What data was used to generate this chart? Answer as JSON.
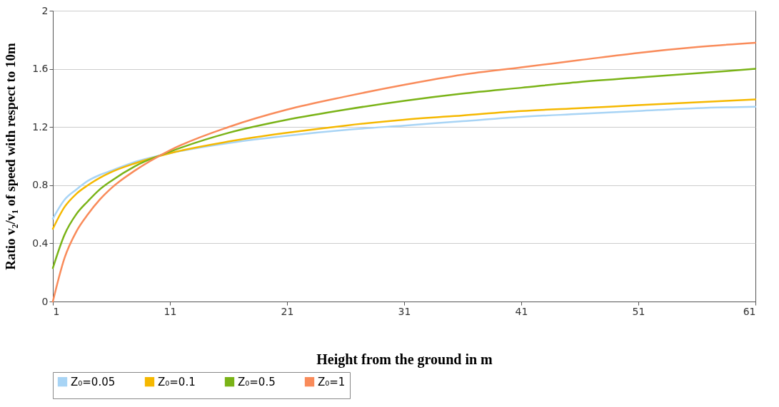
{
  "chart_data": {
    "type": "line",
    "xlabel": "Height from the ground in m",
    "ylabel": "Ratio v₂/v₁ of speed with respect to 10m",
    "x": [
      1,
      2,
      3,
      4,
      5,
      6,
      8,
      11,
      16,
      21,
      26,
      31,
      36,
      41,
      46,
      51,
      56,
      61
    ],
    "series": [
      {
        "name": "Z₀=0.05",
        "color": "#a8d4f5",
        "values": [
          0.57,
          0.7,
          0.77,
          0.83,
          0.87,
          0.9,
          0.96,
          1.02,
          1.09,
          1.14,
          1.18,
          1.21,
          1.24,
          1.27,
          1.29,
          1.31,
          1.33,
          1.34
        ]
      },
      {
        "name": "Z₀=0.1",
        "color": "#f5b800",
        "values": [
          0.5,
          0.65,
          0.74,
          0.8,
          0.85,
          0.89,
          0.95,
          1.02,
          1.1,
          1.16,
          1.21,
          1.25,
          1.28,
          1.31,
          1.33,
          1.35,
          1.37,
          1.39
        ]
      },
      {
        "name": "Z₀=0.5",
        "color": "#7ab317",
        "values": [
          0.23,
          0.46,
          0.6,
          0.69,
          0.77,
          0.83,
          0.93,
          1.03,
          1.16,
          1.25,
          1.32,
          1.38,
          1.43,
          1.47,
          1.51,
          1.54,
          1.57,
          1.6
        ]
      },
      {
        "name": "Z₀=1",
        "color": "#f98b5a",
        "values": [
          0,
          0.3,
          0.48,
          0.6,
          0.7,
          0.78,
          0.9,
          1.04,
          1.2,
          1.32,
          1.41,
          1.49,
          1.56,
          1.61,
          1.66,
          1.71,
          1.75,
          1.78
        ]
      }
    ],
    "xlim": [
      1,
      61
    ],
    "xticks": [
      1,
      11,
      21,
      31,
      41,
      51,
      61
    ],
    "ylim": [
      0,
      2
    ],
    "yticks": [
      {
        "value": 0,
        "label": "0"
      },
      0.4,
      0.8,
      1.2,
      1.6,
      {
        "value": 2,
        "label": "2"
      }
    ],
    "grid": "y",
    "legend": "bottom",
    "marker": "none"
  }
}
